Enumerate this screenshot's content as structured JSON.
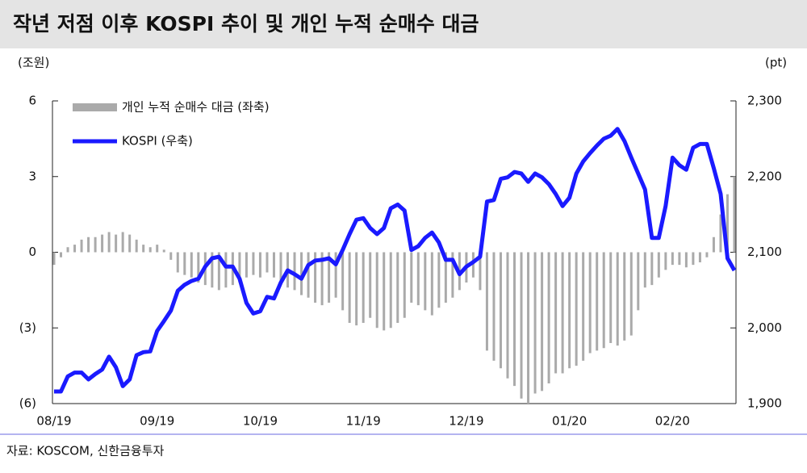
{
  "chart_data": {
    "type": "combo",
    "title": "작년 저점 이후 KOSPI 추이 및 개인 누적 순매수 대금",
    "y_label": "(조원)",
    "y2_label": "(pt)",
    "source": "자료: KOSCOM, 신한금융투자",
    "categories": [
      "08/19",
      null,
      null,
      null,
      null,
      null,
      null,
      null,
      null,
      null,
      null,
      null,
      null,
      null,
      null,
      "09/19",
      null,
      null,
      null,
      null,
      null,
      null,
      null,
      null,
      null,
      null,
      null,
      null,
      null,
      null,
      "10/19",
      null,
      null,
      null,
      null,
      null,
      null,
      null,
      null,
      null,
      null,
      null,
      null,
      null,
      null,
      "11/19",
      null,
      null,
      null,
      null,
      null,
      null,
      null,
      null,
      null,
      null,
      null,
      null,
      null,
      null,
      "12/19",
      null,
      null,
      null,
      null,
      null,
      null,
      null,
      null,
      null,
      null,
      null,
      null,
      null,
      null,
      "01/20",
      null,
      null,
      null,
      null,
      null,
      null,
      null,
      null,
      null,
      null,
      null,
      null,
      null,
      null,
      "02/20",
      null,
      null,
      null,
      null,
      null,
      null,
      null,
      null,
      null
    ],
    "series": [
      {
        "name": "개인 누적 순매수 대금 (좌축)",
        "type": "bar",
        "color": "#aaaaaa",
        "values": [
          -0.5,
          -0.2,
          0.2,
          0.3,
          0.5,
          0.6,
          0.6,
          0.7,
          0.8,
          0.7,
          0.8,
          0.7,
          0.5,
          0.3,
          0.2,
          0.3,
          0.1,
          -0.3,
          -0.8,
          -0.9,
          -1.0,
          -1.2,
          -1.3,
          -1.4,
          -1.5,
          -1.4,
          -1.3,
          -1.2,
          -1.0,
          -0.9,
          -1.0,
          -0.8,
          -1.0,
          -1.2,
          -1.4,
          -1.5,
          -1.7,
          -1.8,
          -2.0,
          -2.1,
          -2.0,
          -1.8,
          -2.3,
          -2.8,
          -2.9,
          -2.8,
          -2.6,
          -3.0,
          -3.1,
          -3.0,
          -2.8,
          -2.6,
          -2.0,
          -2.1,
          -2.3,
          -2.5,
          -2.2,
          -2.0,
          -1.8,
          -1.5,
          -1.2,
          -1.0,
          -1.5,
          -3.9,
          -4.3,
          -4.6,
          -5.0,
          -5.3,
          -5.8,
          -6.0,
          -5.6,
          -5.5,
          -5.2,
          -4.8,
          -4.8,
          -4.6,
          -4.5,
          -4.3,
          -4.0,
          -3.9,
          -3.8,
          -3.6,
          -3.7,
          -3.5,
          -3.3,
          -2.3,
          -1.4,
          -1.3,
          -1.0,
          -0.7,
          -0.5,
          -0.5,
          -0.6,
          -0.5,
          -0.4,
          -0.2,
          0.6,
          1.5,
          2.3,
          3.0
        ]
      },
      {
        "name": "KOSPI (우축)",
        "type": "line",
        "axis": "y2",
        "color": "#1a1aff",
        "values": [
          1916,
          1916,
          1936,
          1941,
          1941,
          1932,
          1939,
          1945,
          1962,
          1948,
          1923,
          1932,
          1964,
          1968,
          1969,
          1996,
          2009,
          2023,
          2049,
          2057,
          2062,
          2065,
          2081,
          2092,
          2094,
          2081,
          2081,
          2065,
          2033,
          2019,
          2022,
          2041,
          2039,
          2060,
          2076,
          2071,
          2065,
          2083,
          2089,
          2090,
          2092,
          2084,
          2103,
          2124,
          2143,
          2145,
          2132,
          2124,
          2132,
          2158,
          2163,
          2155,
          2103,
          2108,
          2119,
          2126,
          2113,
          2090,
          2090,
          2071,
          2081,
          2087,
          2094,
          2167,
          2169,
          2197,
          2199,
          2206,
          2204,
          2193,
          2204,
          2199,
          2190,
          2177,
          2161,
          2172,
          2204,
          2220,
          2231,
          2241,
          2250,
          2254,
          2263,
          2247,
          2225,
          2204,
          2183,
          2119,
          2119,
          2161,
          2225,
          2215,
          2209,
          2238,
          2243,
          2243,
          2211,
          2177,
          2092,
          2076
        ]
      }
    ],
    "ylim": [
      -6,
      6
    ],
    "yticks": [
      {
        "value": -6,
        "label": "(6)"
      },
      {
        "value": -3,
        "label": "(3)"
      },
      0,
      3,
      6
    ],
    "y2lim": [
      1900,
      2300
    ],
    "y2ticks": [
      {
        "value": 1900,
        "label": "1,900"
      },
      {
        "value": 2000,
        "label": "2,000"
      },
      {
        "value": 2100,
        "label": "2,100"
      },
      {
        "value": 2200,
        "label": "2,200"
      },
      {
        "value": 2300,
        "label": "2,300"
      }
    ],
    "legend": "upper left"
  }
}
